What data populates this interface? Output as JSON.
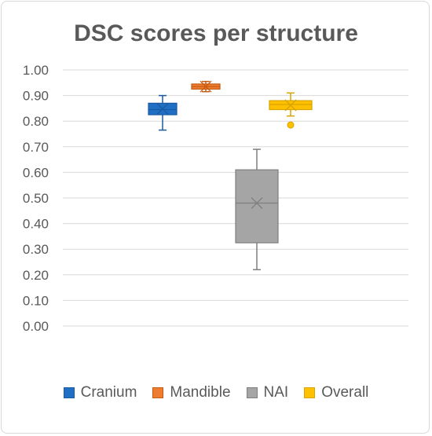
{
  "chart_data": {
    "type": "box",
    "title": "DSC scores per structure",
    "xlabel": "",
    "ylabel": "",
    "ylim": [
      0,
      1
    ],
    "yticks": [
      "0.00",
      "0.10",
      "0.20",
      "0.30",
      "0.40",
      "0.50",
      "0.60",
      "0.70",
      "0.80",
      "0.90",
      "1.00"
    ],
    "grid": true,
    "legend_position": "bottom",
    "series": [
      {
        "name": "Cranium",
        "color": "#1f6fc4",
        "stroke": "#1a5aa0",
        "whisker_low": 0.765,
        "q1": 0.825,
        "median": 0.845,
        "q3": 0.87,
        "whisker_high": 0.9,
        "mean": 0.848,
        "outliers": []
      },
      {
        "name": "Mandible",
        "color": "#ed7d31",
        "stroke": "#c55a11",
        "whisker_low": 0.915,
        "q1": 0.925,
        "median": 0.935,
        "q3": 0.945,
        "whisker_high": 0.955,
        "mean": 0.935,
        "outliers": []
      },
      {
        "name": "NAI",
        "color": "#a5a5a5",
        "stroke": "#7f7f7f",
        "whisker_low": 0.22,
        "q1": 0.325,
        "median": 0.48,
        "q3": 0.61,
        "whisker_high": 0.69,
        "mean": 0.48,
        "outliers": []
      },
      {
        "name": "Overall",
        "color": "#ffc000",
        "stroke": "#d9a300",
        "whisker_low": 0.82,
        "q1": 0.845,
        "median": 0.865,
        "q3": 0.88,
        "whisker_high": 0.91,
        "mean": 0.862,
        "outliers": [
          0.785
        ]
      }
    ]
  }
}
